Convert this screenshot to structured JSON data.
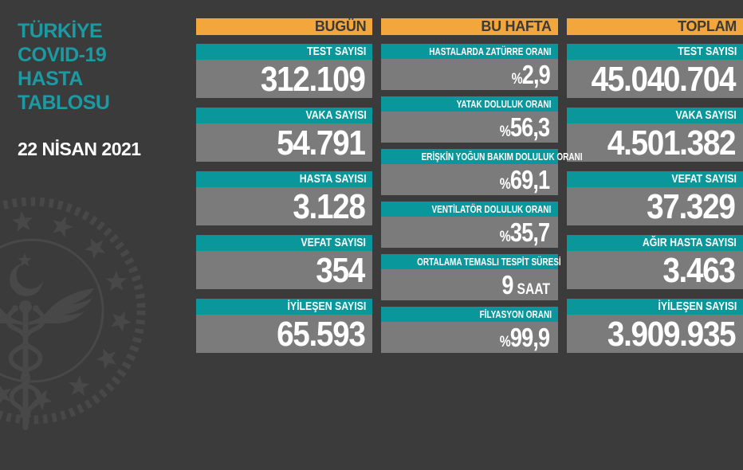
{
  "colors": {
    "background": "#3b3b3b",
    "teal_bar": "#0a979c",
    "teal_title": "#1b9aa4",
    "yellow_header": "#f2a63c",
    "value_gray": "#7b7b7b",
    "header_text_dark": "#3b3b3b",
    "text_white": "#ffffff",
    "emblem_gray": "#484848"
  },
  "sidebar": {
    "title_lines": [
      "TÜRKİYE",
      "COVID-19",
      "HASTA",
      "TABLOSU"
    ],
    "date": "22 NİSAN 2021",
    "logo": "turkish-ministry-of-health-emblem"
  },
  "columns": [
    {
      "header": "BUGÜN",
      "rows": [
        {
          "label": "TEST SAYISI",
          "prefix": "",
          "value": "312.109",
          "suffix": ""
        },
        {
          "label": "VAKA SAYISI",
          "prefix": "",
          "value": "54.791",
          "suffix": ""
        },
        {
          "label": "HASTA SAYISI",
          "prefix": "",
          "value": "3.128",
          "suffix": ""
        },
        {
          "label": "VEFAT SAYISI",
          "prefix": "",
          "value": "354",
          "suffix": ""
        },
        {
          "label": "İYİLEŞEN SAYISI",
          "prefix": "",
          "value": "65.593",
          "suffix": ""
        }
      ]
    },
    {
      "header": "BU HAFTA",
      "rows": [
        {
          "label": "HASTALARDA ZATÜRRE ORANI",
          "prefix": "%",
          "value": "2,9",
          "suffix": ""
        },
        {
          "label": "YATAK DOLULUK ORANI",
          "prefix": "%",
          "value": "56,3",
          "suffix": ""
        },
        {
          "label": "ERİŞKİN YOĞUN BAKIM DOLULUK ORANI",
          "prefix": "%",
          "value": "69,1",
          "suffix": ""
        },
        {
          "label": "VENTİLATÖR DOLULUK ORANI",
          "prefix": "%",
          "value": "35,7",
          "suffix": ""
        },
        {
          "label": "ORTALAMA TEMASLI TESPİT SÜRESİ",
          "prefix": "",
          "value": "9",
          "suffix": "SAAT"
        },
        {
          "label": "FİLYASYON ORANI",
          "prefix": "%",
          "value": "99,9",
          "suffix": ""
        }
      ]
    },
    {
      "header": "TOPLAM",
      "rows": [
        {
          "label": "TEST SAYISI",
          "prefix": "",
          "value": "45.040.704",
          "suffix": ""
        },
        {
          "label": "VAKA SAYISI",
          "prefix": "",
          "value": "4.501.382",
          "suffix": ""
        },
        {
          "label": "VEFAT SAYISI",
          "prefix": "",
          "value": "37.329",
          "suffix": ""
        },
        {
          "label": "AĞIR HASTA SAYISI",
          "prefix": "",
          "value": "3.463",
          "suffix": ""
        },
        {
          "label": "İYİLEŞEN SAYISI",
          "prefix": "",
          "value": "3.909.935",
          "suffix": ""
        }
      ]
    }
  ],
  "chart_data": {
    "type": "table",
    "title": "TÜRKİYE COVID-19 HASTA TABLOSU",
    "date": "22 NİSAN 2021",
    "sections": [
      {
        "name": "BUGÜN",
        "metrics": [
          {
            "label": "TEST SAYISI",
            "value": 312109
          },
          {
            "label": "VAKA SAYISI",
            "value": 54791
          },
          {
            "label": "HASTA SAYISI",
            "value": 3128
          },
          {
            "label": "VEFAT SAYISI",
            "value": 354
          },
          {
            "label": "İYİLEŞEN SAYISI",
            "value": 65593
          }
        ]
      },
      {
        "name": "BU HAFTA",
        "metrics": [
          {
            "label": "HASTALARDA ZATÜRRE ORANI",
            "value": 2.9,
            "unit": "%"
          },
          {
            "label": "YATAK DOLULUK ORANI",
            "value": 56.3,
            "unit": "%"
          },
          {
            "label": "ERİŞKİN YOĞUN BAKIM DOLULUK ORANI",
            "value": 69.1,
            "unit": "%"
          },
          {
            "label": "VENTİLATÖR DOLULUK ORANI",
            "value": 35.7,
            "unit": "%"
          },
          {
            "label": "ORTALAMA TEMASLI TESPİT SÜRESİ",
            "value": 9,
            "unit": "SAAT"
          },
          {
            "label": "FİLYASYON ORANI",
            "value": 99.9,
            "unit": "%"
          }
        ]
      },
      {
        "name": "TOPLAM",
        "metrics": [
          {
            "label": "TEST SAYISI",
            "value": 45040704
          },
          {
            "label": "VAKA SAYISI",
            "value": 4501382
          },
          {
            "label": "VEFAT SAYISI",
            "value": 37329
          },
          {
            "label": "AĞIR HASTA SAYISI",
            "value": 3463
          },
          {
            "label": "İYİLEŞEN SAYISI",
            "value": 3909935
          }
        ]
      }
    ]
  }
}
